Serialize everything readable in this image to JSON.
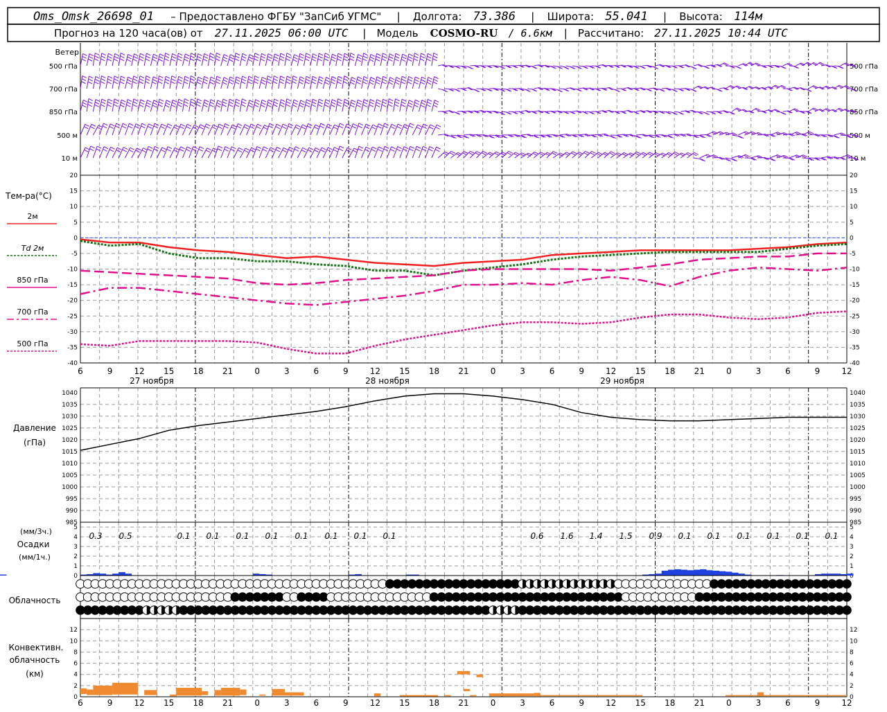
{
  "header": {
    "station": "Oms_Omsk_26698_01",
    "provider": "– Предоставлено ФГБУ \"ЗапСиб УГМС\"",
    "lon_label": "Долгота:",
    "lon_value": "73.386",
    "lat_label": "Широта:",
    "lat_value": "55.041",
    "alt_label": "Высота:",
    "alt_value": "114м",
    "forecast_text": "Прогноз на 120 часа(ов) от",
    "forecast_start": "27.11.2025 06:00 UTC",
    "model_label": "Модель",
    "model_name": "COSMO-RU",
    "model_res": "/ 6.6км",
    "calc_label": "Рассчитано:",
    "calc_time": "27.11.2025 10:44 UTC"
  },
  "time_axis": {
    "hour_labels": [
      "6",
      "9",
      "12",
      "15",
      "18",
      "21",
      "0",
      "3",
      "6",
      "9",
      "12",
      "15",
      "18",
      "21",
      "0",
      "3",
      "6",
      "9",
      "12",
      "15",
      "18",
      "21",
      "0",
      "3",
      "6",
      "9",
      "12"
    ],
    "day_labels": [
      "27 ноября",
      "28 ноября",
      "29 ноября"
    ]
  },
  "wind": {
    "title": "Ветер",
    "levels": [
      "500 гПа",
      "700 гПа",
      "850 гПа",
      "500 м",
      "10 м"
    ],
    "color": "#7b10d8"
  },
  "temperature": {
    "title": "Тем-ра(°С)",
    "legend": [
      {
        "label": "2м",
        "color": "#f02020"
      },
      {
        "label": "Td  2м",
        "color": "#147414"
      },
      {
        "label": "850 гПа",
        "color": "#e0108c"
      },
      {
        "label": "700 гПа",
        "color": "#e0108c"
      },
      {
        "label": "500 гПа",
        "color": "#e0108c"
      }
    ],
    "ticks": [
      "20",
      "15",
      "10",
      "5",
      "0",
      "-5",
      "-10",
      "-15",
      "-20",
      "-25",
      "-30",
      "-35",
      "-40"
    ]
  },
  "pressure": {
    "title_1": "Давление",
    "title_2": "(гПа)",
    "ticks": [
      "1040",
      "1035",
      "1030",
      "1025",
      "1020",
      "1015",
      "1010",
      "1005",
      "1000",
      "995",
      "990",
      "985"
    ]
  },
  "precip": {
    "label_1": "(мм/3ч.)",
    "label_2": "Осадки",
    "label_3": "(мм/1ч.)",
    "ticks": [
      "5",
      "4",
      "3",
      "2",
      "1",
      "0"
    ],
    "totals": [
      "0.3",
      "0.5",
      "0.1",
      "0.1",
      "0.1",
      "0.1",
      "0.1",
      "0.1",
      "0.1",
      "0.1",
      "0.6",
      "1.6",
      "1.4",
      "1.5",
      "0.9",
      "0.1",
      "0.1",
      "0.1",
      "0.1",
      "0.1",
      "0.1"
    ],
    "color": "#2040e0"
  },
  "cloud": {
    "title": "Облачность"
  },
  "convective": {
    "title_1": "Конвективн.",
    "title_2": "облачность",
    "title_3": "(км)",
    "ticks": [
      "12",
      "10",
      "8",
      "6",
      "4",
      "2",
      "0"
    ],
    "color": "#f08a30"
  },
  "chart_data": [
    {
      "type": "line",
      "title": "Тем-ра(°С)",
      "x": [
        "27.11 06",
        "27.11 09",
        "27.11 12",
        "27.11 15",
        "27.11 18",
        "27.11 21",
        "28.11 00",
        "28.11 03",
        "28.11 06",
        "28.11 09",
        "28.11 12",
        "28.11 15",
        "28.11 18",
        "28.11 21",
        "29.11 00",
        "29.11 03",
        "29.11 06",
        "29.11 09",
        "29.11 12",
        "29.11 15",
        "29.11 18",
        "29.11 21",
        "30.11 00",
        "30.11 03",
        "30.11 06",
        "30.11 09",
        "30.11 12"
      ],
      "ylim": [
        -40,
        20
      ],
      "series": [
        {
          "name": "2м",
          "values": [
            -0.5,
            -1.5,
            -1.5,
            -3,
            -4,
            -4.5,
            -5.5,
            -6.5,
            -6,
            -7,
            -8,
            -8.5,
            -9,
            -8,
            -7.5,
            -7,
            -5.5,
            -5,
            -4.5,
            -4,
            -4,
            -4,
            -4,
            -3.5,
            -3,
            -2,
            -1.5
          ]
        },
        {
          "name": "Td  2м",
          "values": [
            -1,
            -2.5,
            -2,
            -5,
            -6.5,
            -6.5,
            -7.5,
            -7.5,
            -8.5,
            -9,
            -10.5,
            -10.5,
            -12,
            -10.5,
            -9.5,
            -8.5,
            -7,
            -6,
            -5.5,
            -5,
            -4.5,
            -4.5,
            -4.5,
            -4.5,
            -3.5,
            -2.5,
            -2
          ]
        },
        {
          "name": "850 гПа",
          "values": [
            -10.5,
            -11,
            -11.5,
            -12,
            -12.5,
            -13,
            -14.5,
            -15,
            -14.5,
            -13.5,
            -13,
            -12.5,
            -12,
            -10.5,
            -10,
            -10,
            -10,
            -10,
            -10.5,
            -9.5,
            -8.5,
            -7,
            -6.5,
            -6,
            -6,
            -5,
            -5
          ]
        },
        {
          "name": "700 гПа",
          "values": [
            -18,
            -16,
            -16,
            -17,
            -18,
            -19,
            -20,
            -21,
            -21.5,
            -20.5,
            -19.5,
            -18.5,
            -17,
            -15,
            -15,
            -14.5,
            -15,
            -13.5,
            -12.5,
            -13.5,
            -15.5,
            -12.5,
            -10.5,
            -9.5,
            -10,
            -10.5,
            -9.5
          ]
        },
        {
          "name": "500 гПа",
          "values": [
            -34,
            -34.5,
            -33,
            -33,
            -33,
            -33,
            -33.5,
            -35.5,
            -37,
            -37,
            -34.5,
            -32.5,
            -31,
            -29.5,
            -28,
            -27,
            -27,
            -27.5,
            -27,
            -25.5,
            -24.5,
            -24.5,
            -25.5,
            -26,
            -25.5,
            -24,
            -23.5
          ]
        }
      ]
    },
    {
      "type": "line",
      "title": "Давление (гПа)",
      "x": [
        "27.11 06",
        "27.11 09",
        "27.11 12",
        "27.11 15",
        "27.11 18",
        "27.11 21",
        "28.11 00",
        "28.11 03",
        "28.11 06",
        "28.11 09",
        "28.11 12",
        "28.11 15",
        "28.11 18",
        "28.11 21",
        "29.11 00",
        "29.11 03",
        "29.11 06",
        "29.11 09",
        "29.11 12",
        "29.11 15",
        "29.11 18",
        "29.11 21",
        "30.11 00",
        "30.11 03",
        "30.11 06",
        "30.11 09",
        "30.11 12"
      ],
      "ylim": [
        985,
        1040
      ],
      "series": [
        {
          "name": "Давление",
          "values": [
            1015.5,
            1018,
            1020.5,
            1024,
            1026,
            1027.5,
            1029,
            1030.5,
            1032,
            1034,
            1036.5,
            1038.5,
            1039.5,
            1039.5,
            1038.5,
            1037,
            1035,
            1031.5,
            1029.5,
            1028.5,
            1028,
            1028,
            1028.5,
            1029,
            1029.5,
            1029.5,
            1029.5
          ]
        }
      ]
    },
    {
      "type": "bar",
      "title": "Осадки (мм/1ч.)",
      "x_hours_from_start": [
        0,
        1,
        2,
        3,
        4,
        5,
        6,
        7,
        8,
        9,
        10,
        11,
        12,
        13,
        14,
        15,
        16,
        17,
        18,
        19,
        20,
        21,
        22,
        23,
        24,
        25,
        26,
        27,
        28,
        29,
        30,
        31,
        32,
        33,
        34,
        35,
        36,
        37,
        38,
        39,
        40,
        41,
        42,
        43,
        44,
        45,
        46,
        47,
        48,
        49,
        50,
        51,
        52,
        53,
        54,
        55,
        56,
        57,
        58,
        59,
        60,
        61,
        62,
        63,
        64,
        65,
        66,
        67,
        68,
        69,
        70,
        71,
        72,
        73,
        74,
        75,
        76,
        77,
        78,
        79,
        80,
        81,
        82,
        83,
        84,
        85,
        86,
        87,
        88,
        89,
        90,
        91,
        92,
        93,
        94,
        95,
        96,
        97,
        98,
        99,
        100,
        101,
        102,
        103,
        104,
        105,
        106,
        107,
        108,
        109,
        110,
        111,
        112,
        113,
        114,
        115,
        116,
        117,
        118,
        119,
        120
      ],
      "values": [
        0.1,
        0.15,
        0.25,
        0.2,
        0.1,
        0.2,
        0.35,
        0.2,
        0,
        0,
        0,
        0,
        0,
        0,
        0,
        0,
        0,
        0,
        0,
        0,
        0,
        0,
        0,
        0,
        0,
        0,
        0,
        0.2,
        0.15,
        0.1,
        0,
        0,
        0,
        0,
        0,
        0,
        0,
        0,
        0,
        0,
        0,
        0,
        0.1,
        0.15,
        0,
        0,
        0,
        0,
        0,
        0,
        0,
        0.1,
        0.1,
        0,
        0,
        0,
        0,
        0,
        0,
        0,
        0,
        0,
        0,
        0,
        0,
        0,
        0,
        0,
        0,
        0,
        0,
        0,
        0,
        0,
        0,
        0,
        0,
        0,
        0,
        0,
        0,
        0,
        0,
        0,
        0,
        0,
        0,
        0,
        0.1,
        0.15,
        0.2,
        0.5,
        0.6,
        0.65,
        0.6,
        0.55,
        0.6,
        0.65,
        0.55,
        0.5,
        0.45,
        0.4,
        0.3,
        0.2,
        0.1,
        0,
        0,
        0,
        0,
        0.05,
        0,
        0,
        0,
        0,
        0,
        0.15,
        0.2,
        0.2,
        0.2,
        0.15,
        0.2,
        0.1,
        0.1,
        0.05,
        0
      ]
    },
    {
      "type": "bar",
      "title": "Конвективн. облачность (км)",
      "ylim": [
        0,
        13
      ],
      "segments": [
        {
          "from": 0,
          "to": 1,
          "base": 0.5,
          "top": 1.5
        },
        {
          "from": 1,
          "to": 2,
          "base": 0.3,
          "top": 1.3
        },
        {
          "from": 2,
          "to": 5,
          "base": 0.3,
          "top": 2
        },
        {
          "from": 5,
          "to": 9,
          "base": 0.4,
          "top": 2.5
        },
        {
          "from": 10,
          "to": 12,
          "base": 0.3,
          "top": 1.2
        },
        {
          "from": 14,
          "to": 15,
          "base": 0.1,
          "top": 0.4
        },
        {
          "from": 15,
          "to": 19,
          "base": 0.2,
          "top": 1.6
        },
        {
          "from": 19,
          "to": 20,
          "base": 0.3,
          "top": 1
        },
        {
          "from": 21,
          "to": 22,
          "base": 0.2,
          "top": 1.2
        },
        {
          "from": 22,
          "to": 25,
          "base": 0.2,
          "top": 1.6
        },
        {
          "from": 25,
          "to": 26,
          "base": 0.3,
          "top": 1.3
        },
        {
          "from": 28,
          "to": 29,
          "base": 0.2,
          "top": 0.4
        },
        {
          "from": 30,
          "to": 32,
          "base": 0.2,
          "top": 1.4
        },
        {
          "from": 32,
          "to": 35,
          "base": 0.2,
          "top": 0.8
        },
        {
          "from": 46,
          "to": 47,
          "base": 0.1,
          "top": 0.6
        },
        {
          "from": 50,
          "to": 56,
          "base": 0.05,
          "top": 0.3
        },
        {
          "from": 57,
          "to": 58,
          "base": 0.1,
          "top": 0.3
        },
        {
          "from": 59,
          "to": 61,
          "base": 4,
          "top": 4.6
        },
        {
          "from": 60,
          "to": 61,
          "base": 1,
          "top": 1.4
        },
        {
          "from": 61,
          "to": 62,
          "base": 0.1,
          "top": 0.3
        },
        {
          "from": 62,
          "to": 63,
          "base": 3.5,
          "top": 4
        },
        {
          "from": 64,
          "to": 71,
          "base": 0.1,
          "top": 0.6
        },
        {
          "from": 71,
          "to": 72,
          "base": 0.1,
          "top": 0.7
        },
        {
          "from": 72,
          "to": 88,
          "base": 0.1,
          "top": 0.3
        },
        {
          "from": 101,
          "to": 120,
          "base": 0.1,
          "top": 0.3
        },
        {
          "from": 106,
          "to": 107,
          "base": 0.1,
          "top": 0.8
        }
      ]
    }
  ]
}
